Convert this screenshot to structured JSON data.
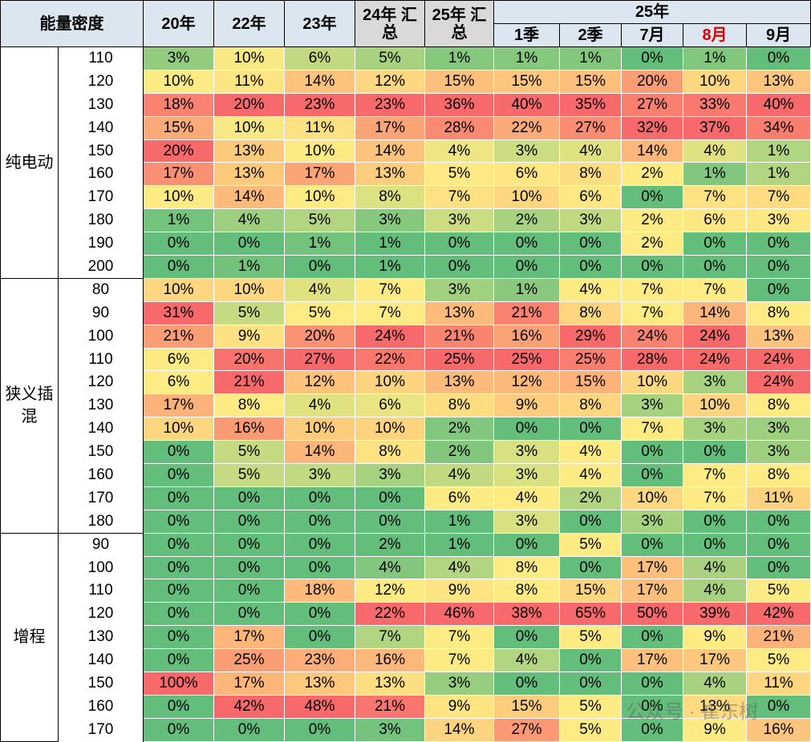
{
  "header": {
    "corner": "能量密度",
    "columns": [
      "20年",
      "22年",
      "23年",
      "24年 汇总",
      "25年 汇总"
    ],
    "group": "25年",
    "sub": [
      "1季",
      "2季",
      "7月",
      "8月",
      "9月"
    ]
  },
  "groups": [
    {
      "name": "纯电动",
      "rows": [
        {
          "density": "110",
          "cells": [
            "3%",
            "10%",
            "6%",
            "5%",
            "1%",
            "1%",
            "1%",
            "0%",
            "1%",
            "0%"
          ]
        },
        {
          "density": "120",
          "cells": [
            "10%",
            "11%",
            "14%",
            "12%",
            "15%",
            "15%",
            "15%",
            "20%",
            "10%",
            "13%"
          ]
        },
        {
          "density": "130",
          "cells": [
            "18%",
            "20%",
            "23%",
            "23%",
            "36%",
            "40%",
            "35%",
            "27%",
            "33%",
            "40%"
          ]
        },
        {
          "density": "140",
          "cells": [
            "15%",
            "10%",
            "11%",
            "17%",
            "28%",
            "22%",
            "27%",
            "32%",
            "37%",
            "34%"
          ]
        },
        {
          "density": "150",
          "cells": [
            "20%",
            "13%",
            "10%",
            "14%",
            "4%",
            "3%",
            "4%",
            "14%",
            "4%",
            "1%"
          ]
        },
        {
          "density": "160",
          "cells": [
            "17%",
            "13%",
            "17%",
            "13%",
            "5%",
            "6%",
            "8%",
            "2%",
            "1%",
            "1%"
          ]
        },
        {
          "density": "170",
          "cells": [
            "10%",
            "14%",
            "10%",
            "8%",
            "7%",
            "10%",
            "6%",
            "0%",
            "7%",
            "7%"
          ]
        },
        {
          "density": "180",
          "cells": [
            "1%",
            "4%",
            "5%",
            "3%",
            "3%",
            "2%",
            "3%",
            "2%",
            "6%",
            "3%"
          ]
        },
        {
          "density": "190",
          "cells": [
            "0%",
            "0%",
            "1%",
            "1%",
            "0%",
            "0%",
            "0%",
            "2%",
            "0%",
            "0%"
          ]
        },
        {
          "density": "200",
          "cells": [
            "0%",
            "1%",
            "0%",
            "1%",
            "0%",
            "0%",
            "0%",
            "0%",
            "0%",
            "0%"
          ]
        }
      ]
    },
    {
      "name": "狭义插混",
      "rows": [
        {
          "density": "80",
          "cells": [
            "10%",
            "10%",
            "4%",
            "7%",
            "3%",
            "1%",
            "4%",
            "7%",
            "7%",
            "0%"
          ]
        },
        {
          "density": "90",
          "cells": [
            "31%",
            "5%",
            "5%",
            "7%",
            "13%",
            "21%",
            "8%",
            "7%",
            "14%",
            "8%"
          ]
        },
        {
          "density": "100",
          "cells": [
            "21%",
            "9%",
            "20%",
            "24%",
            "21%",
            "16%",
            "29%",
            "24%",
            "24%",
            "13%"
          ]
        },
        {
          "density": "110",
          "cells": [
            "6%",
            "20%",
            "27%",
            "22%",
            "25%",
            "25%",
            "25%",
            "28%",
            "24%",
            "24%"
          ]
        },
        {
          "density": "120",
          "cells": [
            "6%",
            "21%",
            "12%",
            "10%",
            "13%",
            "12%",
            "15%",
            "10%",
            "3%",
            "24%"
          ]
        },
        {
          "density": "130",
          "cells": [
            "17%",
            "8%",
            "4%",
            "6%",
            "8%",
            "9%",
            "8%",
            "3%",
            "10%",
            "8%"
          ]
        },
        {
          "density": "140",
          "cells": [
            "10%",
            "16%",
            "10%",
            "10%",
            "2%",
            "0%",
            "0%",
            "7%",
            "3%",
            "3%"
          ]
        },
        {
          "density": "150",
          "cells": [
            "0%",
            "5%",
            "14%",
            "8%",
            "2%",
            "3%",
            "4%",
            "0%",
            "0%",
            "3%"
          ]
        },
        {
          "density": "160",
          "cells": [
            "0%",
            "5%",
            "3%",
            "3%",
            "4%",
            "3%",
            "4%",
            "0%",
            "7%",
            "8%"
          ]
        },
        {
          "density": "170",
          "cells": [
            "0%",
            "0%",
            "0%",
            "0%",
            "6%",
            "4%",
            "2%",
            "10%",
            "7%",
            "11%"
          ]
        },
        {
          "density": "180",
          "cells": [
            "0%",
            "0%",
            "0%",
            "0%",
            "1%",
            "3%",
            "0%",
            "3%",
            "0%",
            "0%"
          ]
        }
      ]
    },
    {
      "name": "增程",
      "rows": [
        {
          "density": "90",
          "cells": [
            "0%",
            "0%",
            "0%",
            "2%",
            "1%",
            "0%",
            "5%",
            "0%",
            "0%",
            "0%"
          ]
        },
        {
          "density": "100",
          "cells": [
            "0%",
            "0%",
            "0%",
            "4%",
            "4%",
            "8%",
            "0%",
            "17%",
            "4%",
            "0%"
          ]
        },
        {
          "density": "110",
          "cells": [
            "0%",
            "0%",
            "18%",
            "12%",
            "9%",
            "8%",
            "15%",
            "17%",
            "4%",
            "5%"
          ]
        },
        {
          "density": "120",
          "cells": [
            "0%",
            "0%",
            "0%",
            "22%",
            "46%",
            "38%",
            "65%",
            "50%",
            "39%",
            "42%"
          ]
        },
        {
          "density": "130",
          "cells": [
            "0%",
            "17%",
            "0%",
            "7%",
            "7%",
            "0%",
            "5%",
            "0%",
            "9%",
            "21%"
          ]
        },
        {
          "density": "140",
          "cells": [
            "0%",
            "25%",
            "23%",
            "16%",
            "7%",
            "4%",
            "0%",
            "17%",
            "17%",
            "5%"
          ]
        },
        {
          "density": "150",
          "cells": [
            "100%",
            "17%",
            "13%",
            "13%",
            "3%",
            "0%",
            "0%",
            "0%",
            "4%",
            "11%"
          ]
        },
        {
          "density": "160",
          "cells": [
            "0%",
            "42%",
            "48%",
            "21%",
            "9%",
            "15%",
            "5%",
            "0%",
            "13%",
            "0%"
          ]
        },
        {
          "density": "170",
          "cells": [
            "0%",
            "0%",
            "0%",
            "3%",
            "14%",
            "27%",
            "5%",
            "0%",
            "9%",
            "16%"
          ]
        }
      ]
    }
  ],
  "watermark": "公众号 · 崔东树"
}
